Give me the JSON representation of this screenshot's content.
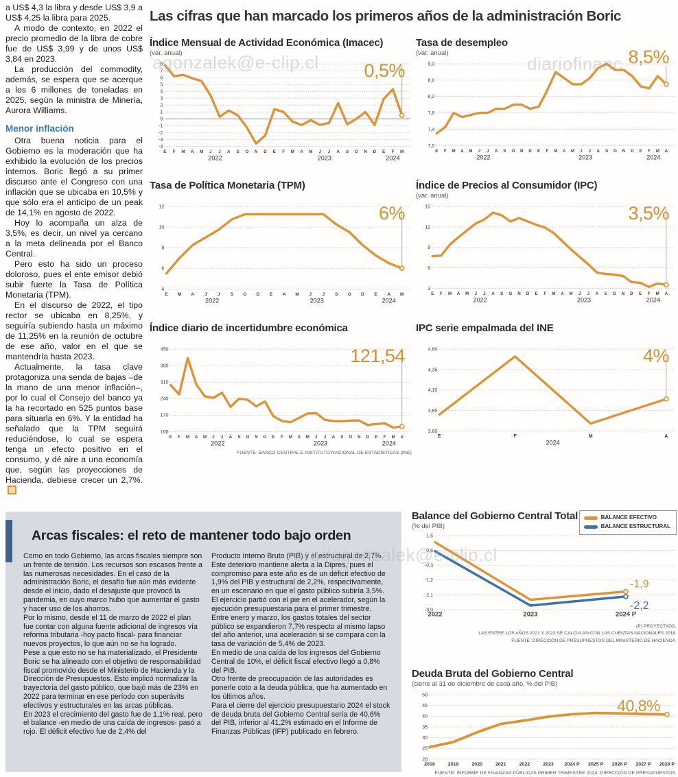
{
  "main_title": "Las cifras que han marcado los primeros años de la administración Boric",
  "colors": {
    "orange": "#DD9336",
    "blue": "#3D72A6",
    "annotation": "#D8902E",
    "box_bg": "#D7DBE1",
    "accent_bar": "#3E6387",
    "subhead_blue": "#3779B5"
  },
  "watermarks": [
    "agonzalek@e-clip.cl",
    "diariofinanc",
    "ero#agonzalek@e-clip.cl"
  ],
  "article": {
    "paragraphs": [
      "a US$ 4,3 la libra y desde US$ 3,9 a US$ 4,25 la libra para 2025.",
      "A modo de contexto, en 2022 el precio promedio de la libra de cobre fue de US$ 3,99 y de unos US$ 3,84 en 2023.",
      "La producción del commodity, además, se espera que se acerque a los 6 millones de toneladas en 2025, según la ministra de Minería, Aurora Williams."
    ],
    "subhead": "Menor inflación",
    "paragraphs2": [
      "Otra buena noticia para el Gobierno es la moderación que ha exhibido la evolución de los precios internos. Boric llegó a su primer discurso ante el Congreso con una inflación que se ubicaba en 10,5% y que sólo era el anticipo de un peak de 14,1% en agosto de 2022.",
      "Hoy lo acompaña un alza de 3,5%, es decir, un nivel ya cercano a la meta delineada por el Banco Central.",
      "Pero esto ha sido un proceso doloroso, pues el ente emisor debió subir fuerte la Tasa de Política Monetaria (TPM).",
      "En el discurso de 2022, el tipo rector se ubicaba en 8,25%, y seguiría subiendo hasta un máximo de 11,25% en la reunión de octubre de ese año, valor en el que se mantendría hasta 2023.",
      "Actualmente, la tasa clave protagoniza una senda de bajas –de la mano de una menor inflación–, por lo cual el Consejo del banco ya la ha recortado en 525 puntos base para situarla en 6%. Y la entidad ha señalado que la TPM seguirá reduciéndose, lo cual se espera tenga un efecto positivo en el consumo, y dé aire a una economía que, según las proyecciones de Hacienda, debiese crecer un 2,7%."
    ]
  },
  "arcas": {
    "title": "Arcas fiscales: el reto de mantener todo bajo orden",
    "col1": [
      "Como en todo Gobierno, las arcas fiscales siempre son un frente de tensión. Los recursos son escasos frente a las numerosas necesidades. En el caso de la administración Boric, el desafío fue aún más evidente desde el inicio, dado el desajuste que provocó la pandemia, en cuyo marco hubo que aumentar el gasto y hacer uso de los ahorros.",
      "Por lo mismo, desde el 11 de marzo de 2022 el plan fue contar con alguna fuente adicional de ingresos vía reforma tributaria -hoy pacto fiscal- para financiar nuevos proyectos, lo que aún no se ha logrado.",
      "Pese a que esto no se ha materializado, el Presidente Boric se ha alineado con el objetivo de responsabilidad fiscal promovido desde el Ministerio de Hacienda y la Dirección de Presupuestos. Esto implicó normalizar la trayectoria del gasto público, que bajó más de 23% en 2022 para terminar en ese período con superávits efectivos y estructurales en las arcas públicas.",
      "En 2023 el crecimiento del gasto fue de 1,1% real, pero el balance -en medio de una caída de ingresos- pasó a rojo. El déficit efectivo fue de 2,4% del"
    ],
    "col2": [
      "Producto Interno Bruto (PIB) y el estructural de 2,7%. Este deterioro mantiene alerta a la Dipres, pues el compromiso para este año es de un déficit efectivo de 1,9% del PIB y estructural de 2,2%, respectivamente, en un escenario en que el gasto público subiría 3,5%.",
      "El ejercicio partió con el pie en el acelerador, según la ejecución presupuestaria para el primer trimestre. Entre enero y marzo, los gastos totales del sector público se expandieron 7,7% respecto al mismo lapso del año anterior, una aceleración si se compara con la tasa de variación de 5,4% de 2023.",
      "En medio de una caída de los ingresos del Gobierno Central de 10%, el déficit fiscal efectivo llegó a 0,8% del PIB.",
      "Otro frente de preocupación de las autoridades es ponerle coto a la deuda pública, que ha aumentado en los últimos años.",
      "Para el cierre del ejercicio presupuestario 2024 el stock de deuda bruta del Gobierno Central sería de 40,6% del PIB, inferior al 41,2% estimado en el Informe de Finanzas Públicas (IFP) publicado en febrero."
    ]
  },
  "chart_data": [
    {
      "type": "line",
      "title": "Índice Mensual de Actividad Económica (Imacec)",
      "subtitle": "(var. anual)",
      "annotation": "0,5%",
      "y_vals": [
        8,
        7,
        6,
        5,
        4,
        3,
        2,
        1,
        0,
        -1,
        -2,
        -3,
        -4
      ],
      "y_labs": [
        "8",
        "7",
        "6",
        "5",
        "4",
        "3",
        "2",
        "1",
        "0",
        "-1",
        "-2",
        "-3",
        "-4"
      ],
      "y_min": -4,
      "y_max": 8,
      "x_labels": [
        "E",
        "F",
        "M",
        "A",
        "M",
        "J",
        "J",
        "A",
        "S",
        "O",
        "N",
        "D",
        "E",
        "F",
        "M",
        "A",
        "M",
        "J",
        "J",
        "A",
        "S",
        "O",
        "N",
        "D",
        "E",
        "F",
        "M"
      ],
      "years": [
        {
          "t": "2022",
          "i": 5.5
        },
        {
          "t": "2023",
          "i": 17.5
        },
        {
          "t": "2024",
          "i": 25
        }
      ],
      "series": [
        {
          "name": "Imacec var. anual",
          "color": "orange",
          "values": [
            7.8,
            6.2,
            6.4,
            5.9,
            5.5,
            3.4,
            0.3,
            1.2,
            0.5,
            -1.3,
            -3.6,
            -2.4,
            1.4,
            1.0,
            -0.4,
            -0.9,
            -0.2,
            -0.9,
            -0.6,
            2.3,
            -0.8,
            0.0,
            1.0,
            -0.9,
            2.9,
            4.3,
            0.5
          ]
        }
      ],
      "zero_line": true,
      "vline": true,
      "ml": 22
    },
    {
      "type": "line",
      "title": "Tasa de desempleo",
      "subtitle": "(var. anual)",
      "annotation": "8,5%",
      "y_vals": [
        9.0,
        8.6,
        8.2,
        7.8,
        7.4,
        7.0
      ],
      "y_labs": [
        "9,0",
        "8,6",
        "8,2",
        "7,8",
        "7,4",
        "7,0"
      ],
      "y_min": 7.0,
      "y_max": 9.0,
      "x_labels": [
        "E",
        "F",
        "M",
        "A",
        "M",
        "J",
        "J",
        "A",
        "S",
        "O",
        "N",
        "D",
        "E",
        "F",
        "M",
        "A",
        "M",
        "J",
        "J",
        "A",
        "S",
        "O",
        "N",
        "D",
        "E",
        "F",
        "M",
        "A"
      ],
      "years": [
        {
          "t": "2022",
          "i": 5.5
        },
        {
          "t": "2023",
          "i": 17.5
        },
        {
          "t": "2024",
          "i": 25.5
        }
      ],
      "series": [
        {
          "name": "Tasa de desempleo",
          "color": "orange",
          "values": [
            7.3,
            7.45,
            7.8,
            7.7,
            7.75,
            7.8,
            7.8,
            7.9,
            7.9,
            8.0,
            8.0,
            7.9,
            7.95,
            8.35,
            8.8,
            8.65,
            8.5,
            8.5,
            8.65,
            8.9,
            9.0,
            8.85,
            8.85,
            8.7,
            8.45,
            8.4,
            8.7,
            8.5
          ]
        }
      ],
      "vline": true,
      "ml": 30
    },
    {
      "type": "line",
      "title": "Tasa de Política Monetaria (TPM)",
      "annotation": "6%",
      "y_vals": [
        12,
        10,
        8,
        6,
        4
      ],
      "y_labs": [
        "12",
        "10",
        "8",
        "6",
        "4"
      ],
      "y_min": 4,
      "y_max": 12,
      "x_labels": [
        "E",
        "M",
        "A",
        "J",
        "J",
        "S",
        "O",
        "D",
        "E",
        "A",
        "M",
        "J",
        "J",
        "S",
        "O",
        "D",
        "E",
        "A",
        "M"
      ],
      "years": [
        {
          "t": "2022",
          "i": 3.5
        },
        {
          "t": "2023",
          "i": 11.5
        },
        {
          "t": "2024",
          "i": 17
        }
      ],
      "series": [
        {
          "name": "TPM",
          "color": "orange",
          "values": [
            5.5,
            7.0,
            8.25,
            9.0,
            9.75,
            10.75,
            11.25,
            11.25,
            11.25,
            11.25,
            11.25,
            11.25,
            11.25,
            10.25,
            9.5,
            8.25,
            7.25,
            6.5,
            6.0
          ]
        }
      ],
      "vline": true,
      "ml": 24,
      "xfs": 6.5
    },
    {
      "type": "line",
      "title": "Índice de Precios al Consumidor (IPC)",
      "subtitle": "(var. anual)",
      "annotation": "3,5%",
      "y_vals": [
        15,
        12,
        9,
        6,
        3
      ],
      "y_labs": [
        "15",
        "12",
        "9",
        "6",
        "3"
      ],
      "y_min": 3,
      "y_max": 15,
      "x_labels": [
        "E",
        "F",
        "M",
        "A",
        "M",
        "J",
        "J",
        "A",
        "S",
        "O",
        "N",
        "D",
        "E",
        "F",
        "M",
        "A",
        "M",
        "J",
        "J",
        "A",
        "S",
        "O",
        "N",
        "D",
        "E",
        "F",
        "M",
        "A"
      ],
      "years": [
        {
          "t": "2022",
          "i": 5.5
        },
        {
          "t": "2023",
          "i": 17.5
        },
        {
          "t": "2024",
          "i": 25.5
        }
      ],
      "series": [
        {
          "name": "IPC var. anual",
          "color": "orange",
          "values": [
            7.7,
            7.8,
            9.4,
            10.5,
            11.5,
            12.5,
            13.1,
            14.1,
            13.7,
            12.8,
            13.3,
            12.8,
            12.3,
            11.9,
            11.1,
            9.9,
            8.7,
            7.6,
            6.5,
            5.3,
            5.1,
            5.0,
            4.8,
            3.9,
            3.8,
            3.2,
            3.7,
            3.5
          ]
        }
      ],
      "vline": true,
      "ml": 24
    },
    {
      "type": "line",
      "title": "Índice diario de incertidumbre económica",
      "annotation": "121,54",
      "y_vals": [
        450,
        380,
        310,
        240,
        170,
        100
      ],
      "y_labs": [
        "450",
        "380",
        "310",
        "240",
        "170",
        "100"
      ],
      "y_min": 100,
      "y_max": 450,
      "x_labels": [
        "E",
        "F",
        "M",
        "A",
        "M",
        "J",
        "J",
        "A",
        "S",
        "O",
        "N",
        "D",
        "E",
        "F",
        "M",
        "A",
        "M",
        "J",
        "J",
        "A",
        "S",
        "O",
        "N",
        "D",
        "E",
        "F",
        "M",
        "A"
      ],
      "years": [
        {
          "t": "2022",
          "i": 5.5
        },
        {
          "t": "2023",
          "i": 17.5
        },
        {
          "t": "2024",
          "i": 25.5
        }
      ],
      "series": [
        {
          "name": "Incertidumbre económica",
          "color": "orange",
          "values": [
            298,
            258,
            412,
            300,
            250,
            243,
            265,
            205,
            240,
            235,
            207,
            228,
            165,
            145,
            140,
            158,
            177,
            178,
            150,
            145,
            144,
            147,
            147,
            128,
            132,
            135,
            117,
            121.54
          ]
        }
      ],
      "vline": true,
      "ml": 30,
      "source": "FUENTE: BANCO CENTRAL E INSTITUTO NACIONAL DE ESTADÍSTICAS (INE)"
    },
    {
      "type": "line",
      "title": "IPC serie empalmada del INE",
      "annotation": "4%",
      "y_vals": [
        4.6,
        4.35,
        4.1,
        3.85,
        3.6
      ],
      "y_labs": [
        "4,60",
        "4,35",
        "4,10",
        "3,85",
        "3,60"
      ],
      "y_min": 3.6,
      "y_max": 4.6,
      "x_labels": [
        "E",
        "F",
        "M",
        "A"
      ],
      "years": [
        {
          "t": "2024",
          "i": 1.5
        }
      ],
      "series": [
        {
          "name": "IPC serie empalmada",
          "color": "orange",
          "values": [
            3.8,
            4.51,
            3.69,
            3.99
          ]
        }
      ],
      "vline": true,
      "ml": 34,
      "xfs": 7
    },
    {
      "type": "line",
      "title": "Balance del Gobierno Central Total",
      "subtitle": "(% del PIB)",
      "legend": [
        "BALANCE EFECTIVO",
        "BALANCE ESTRUCTURAL"
      ],
      "y_vals": [
        1.5,
        0.6,
        -0.3,
        -1.2,
        -2.1,
        -3.0
      ],
      "y_labs": [
        "1,5",
        "0,6",
        "-0,3",
        "-1,2",
        "-2,1",
        "-3,0"
      ],
      "y_min": -3.0,
      "y_max": 1.5,
      "x_labels": [
        "2022",
        "2023",
        "2024 P"
      ],
      "series": [
        {
          "name": "Balance efectivo",
          "color": "orange",
          "values": [
            1.1,
            -2.4,
            -1.9
          ]
        },
        {
          "name": "Balance estructural",
          "color": "blue",
          "values": [
            0.55,
            -2.75,
            -2.2
          ]
        }
      ],
      "end_labels": [
        {
          "text": "-1,9",
          "dy": -6
        },
        {
          "text": "-2,2",
          "dy": 18
        }
      ],
      "ml": 34,
      "mr": 74,
      "mt": 6,
      "mb": 18,
      "xfs": 9.5,
      "lw": 3.4,
      "footnotes": [
        "(P) PROYECTADO.",
        "LAS ENTRE LOS AÑOS 2021 Y 2023 SE CALCULAN  CON LAS CUENTAS NACIONALES 2018.",
        "FUENTE: DIRECCIÓN DE PRESUPUESTOS DEL MINISTERIO DE HACIENDA."
      ]
    },
    {
      "type": "line",
      "title": "Deuda Bruta del Gobierno Central",
      "subtitle": "(cierre al 31 de diciembre de cada año, % del PIB)",
      "annotation": "40,8%",
      "y_vals": [
        50,
        45,
        40,
        35,
        30,
        25,
        20
      ],
      "y_labs": [
        "50",
        "45",
        "40",
        "35",
        "30",
        "25",
        "20"
      ],
      "y_min": 20,
      "y_max": 50,
      "x_labels": [
        "2018",
        "2019",
        "2020",
        "2021",
        "2022",
        "2023",
        "2024 P",
        "2025 P",
        "2026 P",
        "2027 P",
        "2028 P"
      ],
      "series": [
        {
          "name": "Deuda bruta",
          "color": "orange",
          "values": [
            25.6,
            28.0,
            32.5,
            36.4,
            38.0,
            39.8,
            40.9,
            41.5,
            41.3,
            41.0,
            40.8
          ]
        }
      ],
      "ml": 26,
      "mt": 8,
      "mb": 16,
      "xfs": 7,
      "lw": 3.8,
      "source": "FUENTE: INFORME DE FINANZAS PÚBLICAS PRIMER TRIMESTRE 2024, DIRECCIÓN DE PRESUPUESTOS."
    }
  ]
}
